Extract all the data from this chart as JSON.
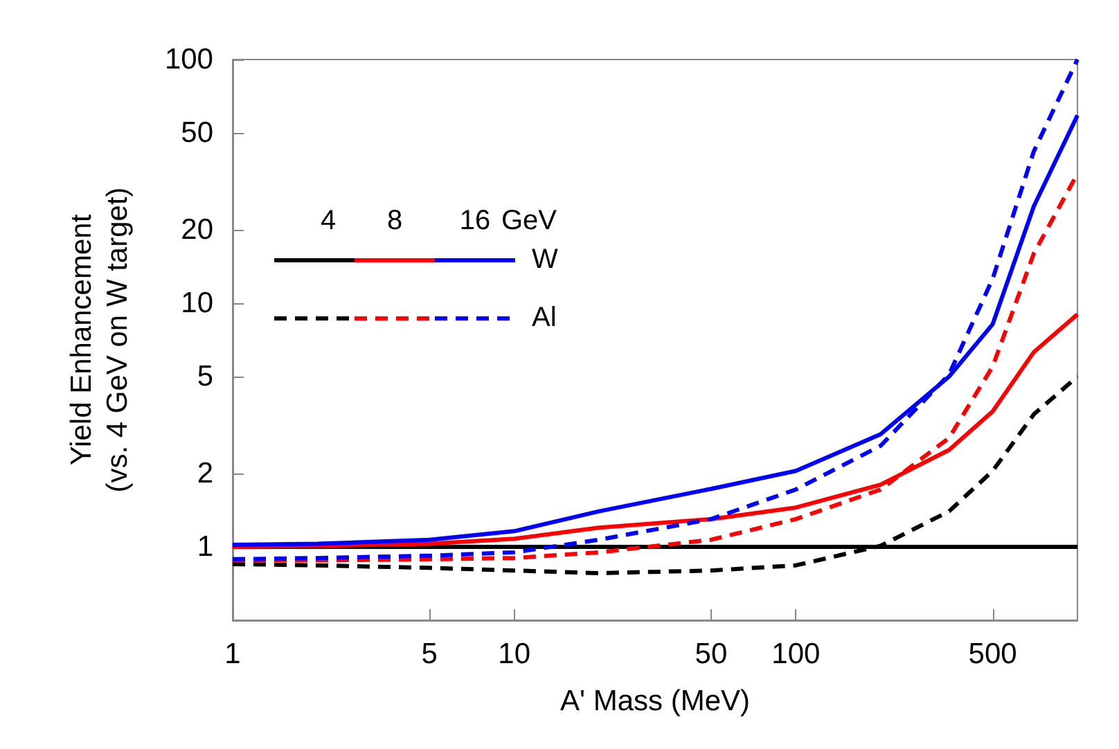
{
  "chart_data": {
    "type": "line",
    "xlabel": "A' Mass (MeV)",
    "ylabel": "Yield Enhancement\n(vs. 4 GeV on W target)",
    "legend_title": "4 8 16 GeV",
    "log": "xy",
    "grid": false,
    "marker": "none",
    "annotations": [
      "W",
      "Al"
    ],
    "x": [
      1,
      2,
      5,
      10,
      20,
      50,
      100,
      200,
      350,
      500,
      700,
      1000
    ],
    "xlim": [
      1,
      1000
    ],
    "xticks": [
      1,
      5,
      10,
      50,
      100,
      500
    ],
    "ylim": [
      0.5,
      100
    ],
    "yticks": [
      1,
      2,
      5,
      10,
      20,
      50,
      100
    ],
    "series": [
      {
        "color": "#000000",
        "line_style": "solid",
        "values": [
          1,
          1,
          1,
          1,
          1,
          1,
          1,
          1,
          1,
          1,
          1,
          1
        ]
      },
      {
        "color": "#ff0000",
        "line_style": "solid",
        "values": [
          1.0,
          1.01,
          1.03,
          1.08,
          1.2,
          1.3,
          1.45,
          1.8,
          2.5,
          3.6,
          6.3,
          9
        ]
      },
      {
        "color": "#0000ff",
        "line_style": "solid",
        "values": [
          1.02,
          1.03,
          1.07,
          1.16,
          1.4,
          1.73,
          2.05,
          2.9,
          5,
          8.2,
          25,
          59
        ]
      },
      {
        "color": "#000000",
        "line_style": "dashed",
        "values": [
          0.85,
          0.84,
          0.82,
          0.8,
          0.78,
          0.8,
          0.84,
          1.01,
          1.4,
          2.05,
          3.5,
          5
        ]
      },
      {
        "color": "#ff0000",
        "line_style": "dashed",
        "values": [
          0.88,
          0.88,
          0.89,
          0.9,
          0.95,
          1.07,
          1.3,
          1.72,
          2.8,
          5.5,
          16,
          34
        ]
      },
      {
        "color": "#0000ff",
        "line_style": "dashed",
        "values": [
          0.89,
          0.9,
          0.92,
          0.95,
          1.07,
          1.3,
          1.72,
          2.6,
          5.1,
          12.6,
          42,
          100
        ]
      }
    ]
  }
}
